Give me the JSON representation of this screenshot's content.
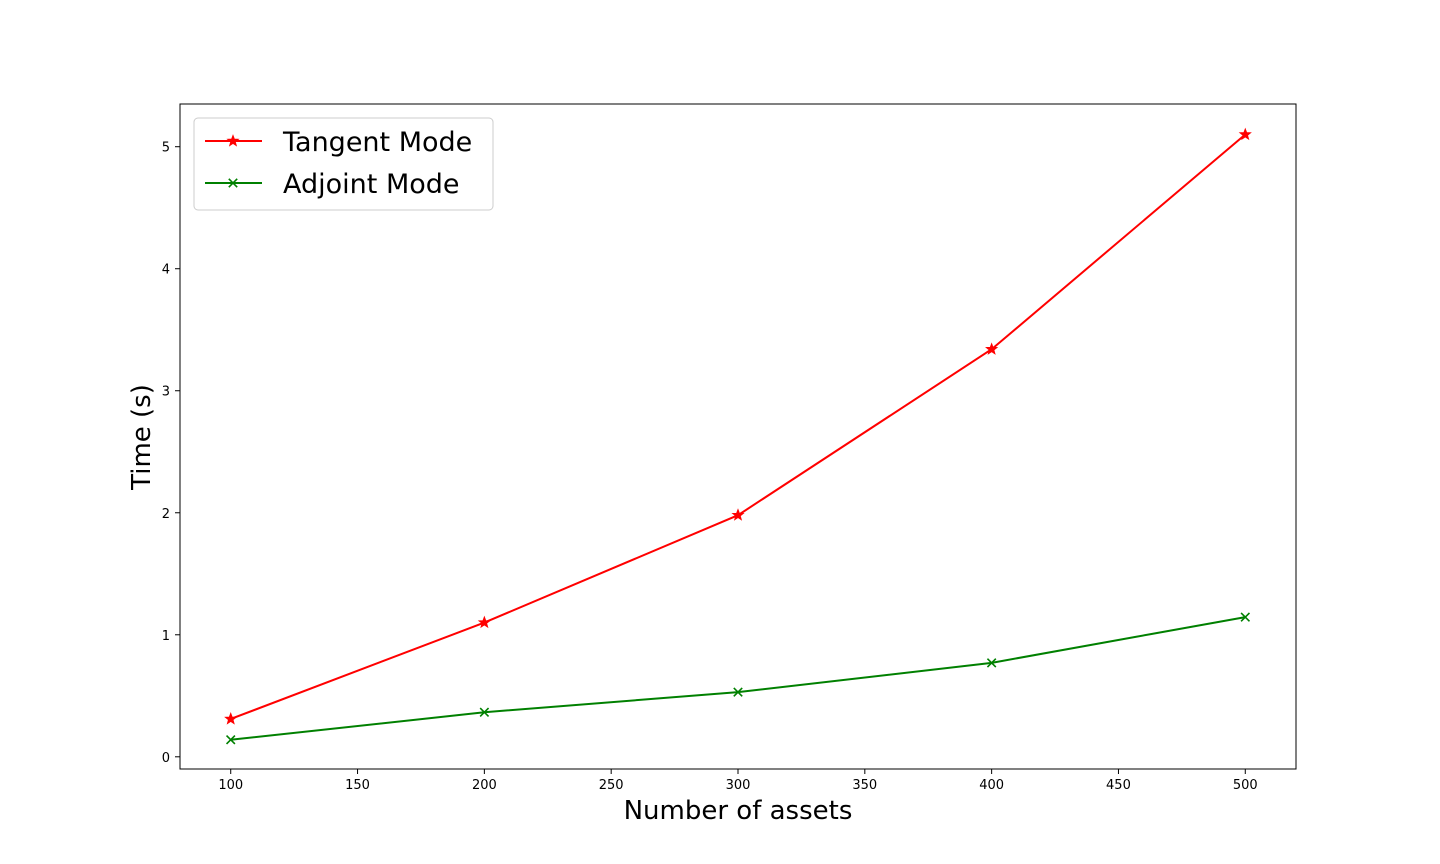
{
  "chart_data": {
    "type": "line",
    "xlabel": "Number of assets",
    "ylabel": "Time (s)",
    "x": [
      100,
      200,
      300,
      400,
      500
    ],
    "xlim": [
      80,
      520
    ],
    "ylim": [
      -0.1,
      5.35
    ],
    "xticks": [
      "100",
      "150",
      "200",
      "250",
      "300",
      "350",
      "400",
      "450",
      "500"
    ],
    "yticks": [
      "0",
      "1",
      "2",
      "3",
      "4",
      "5"
    ],
    "grid": false,
    "legend_position": "upper-left",
    "series": [
      {
        "name": "Tangent Mode",
        "values": [
          0.31,
          1.1,
          1.98,
          3.34,
          5.1
        ],
        "color": "#ff0000",
        "marker": "star"
      },
      {
        "name": "Adjoint Mode",
        "values": [
          0.14,
          0.365,
          0.53,
          0.77,
          1.145
        ],
        "color": "#008000",
        "marker": "x"
      }
    ]
  }
}
